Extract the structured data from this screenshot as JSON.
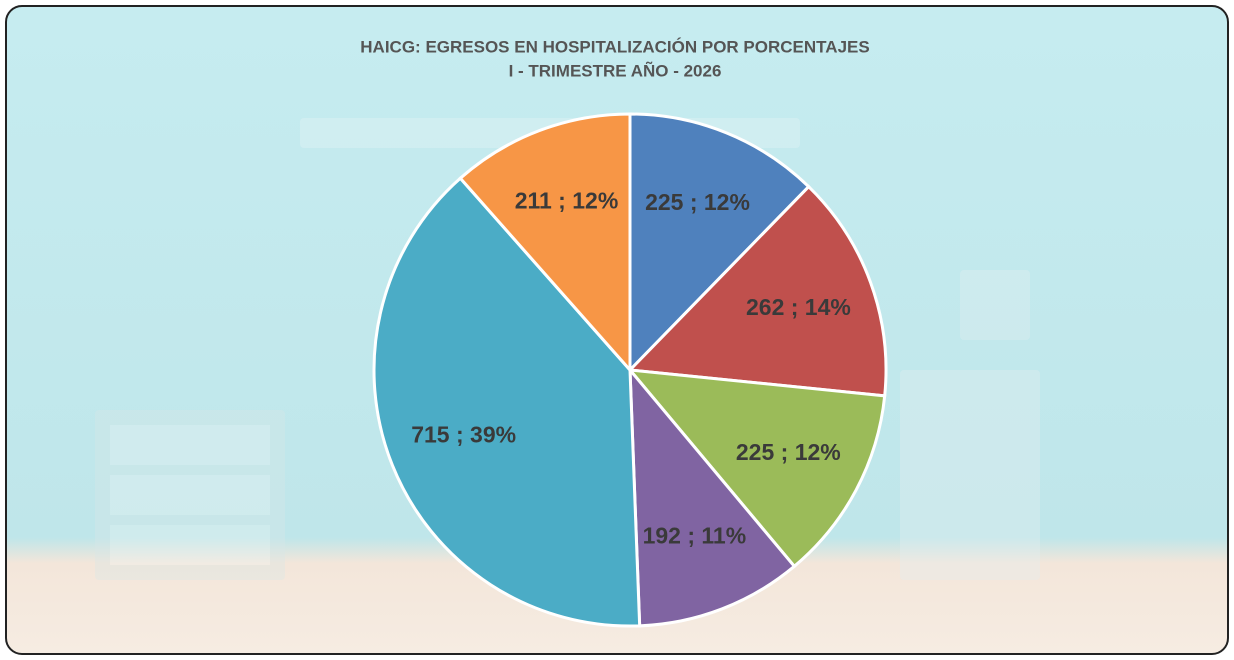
{
  "chart_data": {
    "type": "pie",
    "title": "HAICG: EGRESOS EN HOSPITALIZACIÓN POR PORCENTAJES",
    "subtitle": "I - TRIMESTRE AÑO - 2026",
    "values": [
      225,
      262,
      225,
      192,
      715,
      211
    ],
    "value_labels": [
      "225 ; 12%",
      "262 ; 14%",
      "225 ; 12%",
      "192 ; 11%",
      "715 ; 39%",
      "211 ; 12%"
    ],
    "colors": [
      "#4f81bd",
      "#c0504d",
      "#9bbb59",
      "#8064a2",
      "#4bacc6",
      "#f79646"
    ]
  }
}
